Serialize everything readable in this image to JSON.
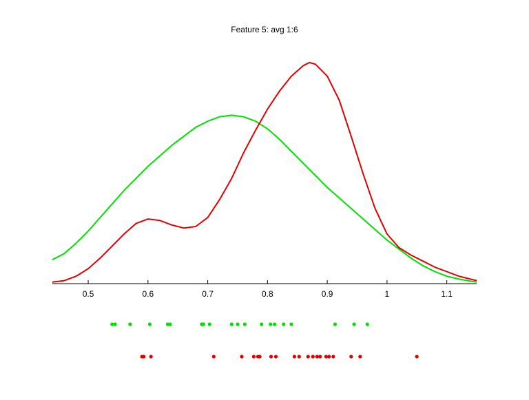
{
  "chart_data": {
    "type": "line",
    "title": "Feature 5: avg 1:6",
    "xlabel": "",
    "ylabel": "",
    "xlim": [
      0.44,
      1.15
    ],
    "ylim": [
      0,
      1
    ],
    "grid": false,
    "x_ticks": [
      "0.5",
      "0.6",
      "0.7",
      "0.8",
      "0.9",
      "1",
      "1.1"
    ],
    "series": [
      {
        "color": "#00e000",
        "density": [
          [
            0.44,
            0.08
          ],
          [
            0.46,
            0.1
          ],
          [
            0.48,
            0.135
          ],
          [
            0.5,
            0.175
          ],
          [
            0.52,
            0.22
          ],
          [
            0.54,
            0.265
          ],
          [
            0.56,
            0.31
          ],
          [
            0.58,
            0.35
          ],
          [
            0.6,
            0.39
          ],
          [
            0.62,
            0.425
          ],
          [
            0.64,
            0.46
          ],
          [
            0.66,
            0.49
          ],
          [
            0.68,
            0.52
          ],
          [
            0.7,
            0.54
          ],
          [
            0.72,
            0.555
          ],
          [
            0.74,
            0.56
          ],
          [
            0.76,
            0.555
          ],
          [
            0.78,
            0.54
          ],
          [
            0.8,
            0.515
          ],
          [
            0.82,
            0.48
          ],
          [
            0.84,
            0.44
          ],
          [
            0.86,
            0.4
          ],
          [
            0.88,
            0.36
          ],
          [
            0.9,
            0.32
          ],
          [
            0.92,
            0.285
          ],
          [
            0.94,
            0.25
          ],
          [
            0.96,
            0.215
          ],
          [
            0.98,
            0.18
          ],
          [
            1.0,
            0.145
          ],
          [
            1.02,
            0.115
          ],
          [
            1.04,
            0.085
          ],
          [
            1.06,
            0.06
          ],
          [
            1.08,
            0.04
          ],
          [
            1.1,
            0.025
          ],
          [
            1.12,
            0.015
          ],
          [
            1.15,
            0.005
          ]
        ],
        "points": [
          0.54,
          0.545,
          0.57,
          0.603,
          0.633,
          0.637,
          0.69,
          0.693,
          0.703,
          0.74,
          0.75,
          0.762,
          0.79,
          0.805,
          0.812,
          0.827,
          0.84,
          0.913,
          0.945,
          0.967
        ]
      },
      {
        "color": "#e00000",
        "density": [
          [
            0.44,
            0.005
          ],
          [
            0.46,
            0.01
          ],
          [
            0.48,
            0.025
          ],
          [
            0.5,
            0.05
          ],
          [
            0.52,
            0.085
          ],
          [
            0.54,
            0.125
          ],
          [
            0.56,
            0.165
          ],
          [
            0.58,
            0.2
          ],
          [
            0.6,
            0.215
          ],
          [
            0.62,
            0.21
          ],
          [
            0.64,
            0.195
          ],
          [
            0.66,
            0.185
          ],
          [
            0.68,
            0.19
          ],
          [
            0.7,
            0.22
          ],
          [
            0.72,
            0.28
          ],
          [
            0.74,
            0.35
          ],
          [
            0.76,
            0.435
          ],
          [
            0.78,
            0.51
          ],
          [
            0.8,
            0.58
          ],
          [
            0.82,
            0.64
          ],
          [
            0.84,
            0.69
          ],
          [
            0.86,
            0.725
          ],
          [
            0.87,
            0.735
          ],
          [
            0.88,
            0.73
          ],
          [
            0.9,
            0.69
          ],
          [
            0.92,
            0.61
          ],
          [
            0.94,
            0.49
          ],
          [
            0.96,
            0.365
          ],
          [
            0.98,
            0.25
          ],
          [
            1.0,
            0.165
          ],
          [
            1.02,
            0.12
          ],
          [
            1.04,
            0.095
          ],
          [
            1.06,
            0.075
          ],
          [
            1.08,
            0.055
          ],
          [
            1.1,
            0.04
          ],
          [
            1.12,
            0.025
          ],
          [
            1.15,
            0.01
          ]
        ],
        "points": [
          0.59,
          0.593,
          0.605,
          0.71,
          0.757,
          0.777,
          0.784,
          0.787,
          0.806,
          0.814,
          0.845,
          0.853,
          0.868,
          0.876,
          0.883,
          0.888,
          0.898,
          0.903,
          0.91,
          0.94,
          0.955,
          1.05
        ]
      }
    ]
  }
}
